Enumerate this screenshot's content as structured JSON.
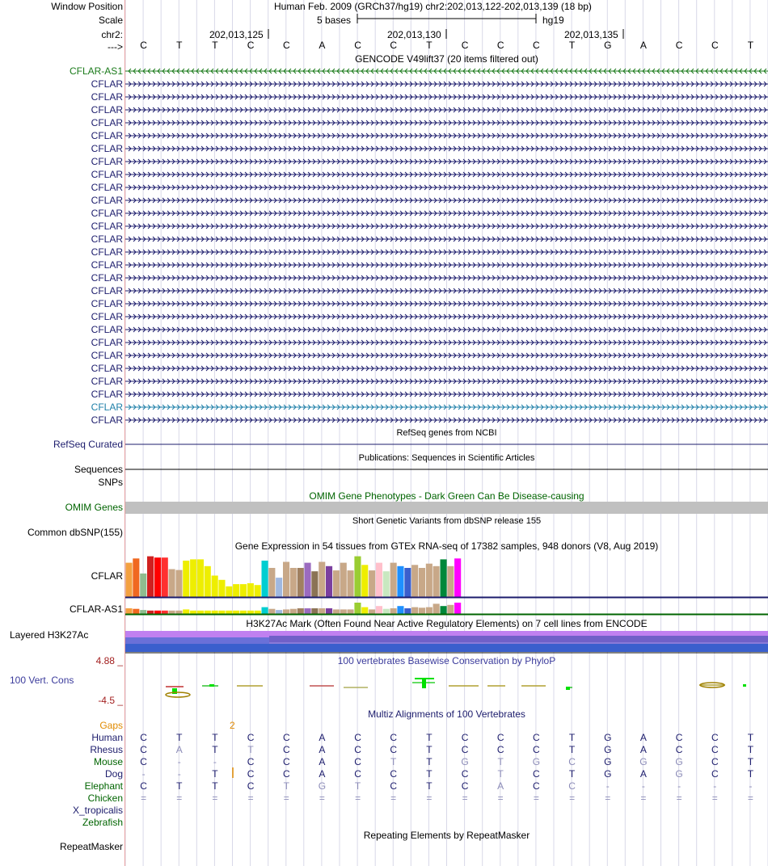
{
  "labels": {
    "window_position": "Window Position",
    "scale": "Scale",
    "chr": "chr2:",
    "strand": "--->",
    "refseq": "RefSeq Curated",
    "sequences": "Sequences",
    "snps": "SNPs",
    "omim": "OMIM Genes",
    "common_dbsnp": "Common dbSNP(155)",
    "cflar": "CFLAR",
    "cflar_as1": "CFLAR-AS1",
    "layered": "Layered H3K27Ac",
    "phylo_max": "4.88 _",
    "vert_cons": "100 Vert. Cons",
    "phylo_min": "-4.5 _",
    "gaps": "Gaps",
    "repeatmasker": "RepeatMasker"
  },
  "header": {
    "assembly": "Human Feb. 2009 (GRCh37/hg19)   chr2:202,013,122-202,013,139 (18 bp)",
    "scale_text": "5 bases",
    "scale_db": "hg19",
    "pos1": "202,013,125",
    "pos2": "202,013,130",
    "pos3": "202,013,135"
  },
  "bases": [
    "C",
    "T",
    "T",
    "C",
    "C",
    "A",
    "C",
    "C",
    "T",
    "C",
    "C",
    "C",
    "T",
    "G",
    "A",
    "C",
    "C",
    "T"
  ],
  "gencode": {
    "title": "GENCODE V49lift37 (20 items filtered out)",
    "transcripts": [
      {
        "name": "CFLAR-AS1",
        "color": "#1a7a1a"
      },
      {
        "name": "CFLAR",
        "color": "#1c1c6c"
      },
      {
        "name": "CFLAR",
        "color": "#1c1c6c"
      },
      {
        "name": "CFLAR",
        "color": "#1c1c6c"
      },
      {
        "name": "CFLAR",
        "color": "#1c1c6c"
      },
      {
        "name": "CFLAR",
        "color": "#1c1c6c"
      },
      {
        "name": "CFLAR",
        "color": "#1c1c6c"
      },
      {
        "name": "CFLAR",
        "color": "#1c1c6c"
      },
      {
        "name": "CFLAR",
        "color": "#1c1c6c"
      },
      {
        "name": "CFLAR",
        "color": "#1c1c6c"
      },
      {
        "name": "CFLAR",
        "color": "#1c1c6c"
      },
      {
        "name": "CFLAR",
        "color": "#1c1c6c"
      },
      {
        "name": "CFLAR",
        "color": "#1c1c6c"
      },
      {
        "name": "CFLAR",
        "color": "#1c1c6c"
      },
      {
        "name": "CFLAR",
        "color": "#1c1c6c"
      },
      {
        "name": "CFLAR",
        "color": "#1c1c6c"
      },
      {
        "name": "CFLAR",
        "color": "#1c1c6c"
      },
      {
        "name": "CFLAR",
        "color": "#1c1c6c"
      },
      {
        "name": "CFLAR",
        "color": "#1c1c6c"
      },
      {
        "name": "CFLAR",
        "color": "#1c1c6c"
      },
      {
        "name": "CFLAR",
        "color": "#1c1c6c"
      },
      {
        "name": "CFLAR",
        "color": "#1c1c6c"
      },
      {
        "name": "CFLAR",
        "color": "#1c1c6c"
      },
      {
        "name": "CFLAR",
        "color": "#1c1c6c"
      },
      {
        "name": "CFLAR",
        "color": "#1c1c6c"
      },
      {
        "name": "CFLAR",
        "color": "#1c1c6c"
      },
      {
        "name": "CFLAR",
        "color": "#1e7fa8"
      },
      {
        "name": "CFLAR",
        "color": "#1c1c6c"
      }
    ]
  },
  "tracks": {
    "refseq_title": "RefSeq genes from NCBI",
    "publications_title": "Publications: Sequences in Scientific Articles",
    "omim_title": "OMIM Gene Phenotypes - Dark Green Can Be Disease-causing",
    "dbsnp_title": "Short Genetic Variants from dbSNP release 155",
    "gtex_title": "Gene Expression in 54 tissues from GTEx RNA-seq of 17382 samples, 948 donors (V8, Aug 2019)",
    "h3k27_title": "H3K27Ac Mark (Often Found Near Active Regulatory Elements) on 7 cell lines from ENCODE",
    "phylop_title": "100 vertebrates Basewise Conservation by PhyloP",
    "multiz_title": "Multiz Alignments of 100 Vertebrates",
    "rmsk_title": "Repeating Elements by RepeatMasker",
    "gap_count": "2"
  },
  "gtex": {
    "colors": [
      "#f4a040",
      "#f06820",
      "#8fbc8f",
      "#d02020",
      "#ff0000",
      "#ff3030",
      "#c8a888",
      "#c8a888",
      "#eeee00",
      "#eeee00",
      "#eeee00",
      "#eeee00",
      "#eeee00",
      "#eeee00",
      "#eeee00",
      "#eeee00",
      "#eeee00",
      "#eeee00",
      "#eeee00",
      "#00ced1",
      "#c8a888",
      "#a0b8e0",
      "#c8a888",
      "#c8a888",
      "#a08060",
      "#9b6bbf",
      "#8b7355",
      "#c8a888",
      "#7b3f9f",
      "#c8a888",
      "#c8a888",
      "#c8a888",
      "#9acd32",
      "#eeee00",
      "#c8a888",
      "#ffc0cb",
      "#c8e8c0",
      "#c8a888",
      "#1e90ff",
      "#3a5fcd",
      "#c8a888",
      "#c8a888",
      "#c8a888",
      "#c8a888",
      "#00883a",
      "#c8a888",
      "#ff00ff"
    ],
    "cflar": [
      0.8,
      0.9,
      0.55,
      0.95,
      0.92,
      0.92,
      0.65,
      0.63,
      0.85,
      0.88,
      0.88,
      0.72,
      0.5,
      0.4,
      0.25,
      0.3,
      0.3,
      0.32,
      0.28,
      0.85,
      0.68,
      0.45,
      0.82,
      0.68,
      0.68,
      0.8,
      0.6,
      0.82,
      0.72,
      0.62,
      0.8,
      0.62,
      0.95,
      0.75,
      0.62,
      0.8,
      0.6,
      0.8,
      0.72,
      0.68,
      0.75,
      0.68,
      0.78,
      0.72,
      0.88,
      0.72,
      0.9
    ],
    "cflar_as1": [
      0.5,
      0.45,
      0.35,
      0.3,
      0.3,
      0.3,
      0.3,
      0.3,
      0.4,
      0.3,
      0.3,
      0.3,
      0.3,
      0.3,
      0.3,
      0.3,
      0.3,
      0.3,
      0.3,
      0.6,
      0.45,
      0.35,
      0.4,
      0.45,
      0.5,
      0.5,
      0.5,
      0.5,
      0.5,
      0.4,
      0.4,
      0.4,
      1.0,
      0.6,
      0.4,
      0.7,
      0.45,
      0.5,
      0.7,
      0.5,
      0.6,
      0.55,
      0.6,
      0.9,
      0.7,
      0.8,
      1.0
    ]
  },
  "multiz": [
    {
      "species": "Human",
      "color": "#1c1c6c",
      "bases": [
        "C",
        "T",
        "T",
        "C",
        "C",
        "A",
        "C",
        "C",
        "T",
        "C",
        "C",
        "C",
        "T",
        "G",
        "A",
        "C",
        "C",
        "T"
      ]
    },
    {
      "species": "Rhesus",
      "color": "#1c1c6c",
      "bases": [
        "C",
        "A",
        "T",
        "T",
        "C",
        "A",
        "C",
        "C",
        "T",
        "C",
        "C",
        "C",
        "T",
        "G",
        "A",
        "C",
        "C",
        "T"
      ]
    },
    {
      "species": "Mouse",
      "color": "#006400",
      "bases": [
        "C",
        "-",
        "-",
        "C",
        "C",
        "A",
        "C",
        "T",
        "T",
        "G",
        "T",
        "G",
        "C",
        "G",
        "G",
        "G",
        "C",
        "T"
      ]
    },
    {
      "species": "Dog",
      "color": "#1c1c6c",
      "bases": [
        "-",
        "-",
        "T",
        "C",
        "C",
        "A",
        "C",
        "C",
        "T",
        "C",
        "T",
        "C",
        "T",
        "G",
        "A",
        "G",
        "C",
        "T"
      ]
    },
    {
      "species": "Elephant",
      "color": "#006400",
      "bases": [
        "C",
        "T",
        "T",
        "C",
        "T",
        "G",
        "T",
        "C",
        "T",
        "C",
        "A",
        "C",
        "C",
        "-",
        "-",
        "-",
        "-",
        "-"
      ]
    },
    {
      "species": "Chicken",
      "color": "#006400",
      "bases": [
        "=",
        "=",
        "=",
        "=",
        "=",
        "=",
        "=",
        "=",
        "=",
        "=",
        "=",
        "=",
        "=",
        "=",
        "=",
        "=",
        "=",
        "="
      ]
    },
    {
      "species": "X_tropicalis",
      "color": "#1c1c6c",
      "bases": []
    },
    {
      "species": "Zebrafish",
      "color": "#006400",
      "bases": []
    }
  ],
  "colors": {
    "gencode_blue": "#1c1c6c",
    "gencode_green": "#1a7a1a",
    "omim_gray": "#c0c0c0",
    "h3k27_violet": "#c080f0",
    "h3k27_blue": "#3a5fcd"
  }
}
